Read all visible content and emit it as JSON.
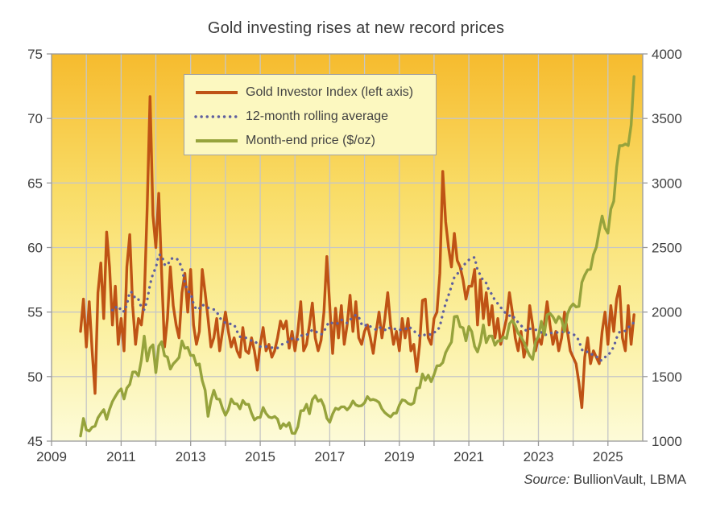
{
  "title": "Gold investing rises at new record prices",
  "source": {
    "prefix": "Source:",
    "text": "BullionVault, LBMA"
  },
  "legend": [
    {
      "label": "Gold Investor Index (left axis)",
      "style": "solid",
      "color": "#bf5315"
    },
    {
      "label": "12-month rolling average",
      "style": "dotted",
      "color": "#5f5f9e"
    },
    {
      "label": "Month-end price ($/oz)",
      "style": "solid",
      "color": "#96a33c"
    }
  ],
  "colors": {
    "line_red": "#bf5315",
    "line_dotted": "#5f5f9e",
    "line_green": "#96a33c",
    "gridline": "#c6c6c6",
    "axis": "#9a9a9a",
    "text": "#3f3f3f",
    "plot_gradient_top": "#f6bb2e",
    "plot_gradient_mid1": "#f9dc66",
    "plot_gradient_mid2": "#fbf0a0",
    "plot_gradient_bottom": "#fdfbd8",
    "legend_bg": "#fcf8c0",
    "legend_border": "#a2a2a2"
  },
  "chart_data": {
    "type": "line",
    "title": "Gold investing rises at new record prices",
    "xlabel": "",
    "ylabel_left": "",
    "ylabel_right": "",
    "grid": true,
    "legend_position": "upper-left-inside",
    "x_axis": {
      "range": [
        2009,
        2026
      ],
      "tick_labels": [
        2009,
        2011,
        2013,
        2015,
        2017,
        2019,
        2021,
        2023,
        2025
      ],
      "gridline_years_start": 2010,
      "gridline_years_end": 2025
    },
    "left_axis": {
      "range": [
        45,
        75
      ],
      "ticks": [
        45,
        50,
        55,
        60,
        65,
        70,
        75
      ]
    },
    "right_axis": {
      "range": [
        1000,
        4000
      ],
      "ticks": [
        1000,
        1500,
        2000,
        2500,
        3000,
        3500,
        4000
      ]
    },
    "x_start": {
      "year": 2009,
      "month": 10,
      "label": "2009-10",
      "frequency": "monthly",
      "last": "2025-09"
    },
    "series": [
      {
        "name": "Gold Investor Index (left axis)",
        "axis": "left",
        "style": "solid",
        "color": "#bf5315",
        "values": [
          53.5,
          56.0,
          52.3,
          55.8,
          52.0,
          48.7,
          56.5,
          58.8,
          54.5,
          61.2,
          58.5,
          54.0,
          57.0,
          52.5,
          54.5,
          52.0,
          58.5,
          61.0,
          55.5,
          52.5,
          54.5,
          54.0,
          56.0,
          63.0,
          71.7,
          62.5,
          60.0,
          64.2,
          58.0,
          52.3,
          54.5,
          58.5,
          55.5,
          54.0,
          53.0,
          56.5,
          58.0,
          55.0,
          58.3,
          54.0,
          52.5,
          53.5,
          58.3,
          56.5,
          54.5,
          52.3,
          53.0,
          54.5,
          52.0,
          53.5,
          55.0,
          53.5,
          52.3,
          53.0,
          52.0,
          51.5,
          53.8,
          52.0,
          51.8,
          53.0,
          52.0,
          50.5,
          52.5,
          53.8,
          52.0,
          52.5,
          51.5,
          52.0,
          53.0,
          54.3,
          53.7,
          54.3,
          52.2,
          53.5,
          52.0,
          53.5,
          55.8,
          52.0,
          52.5,
          54.0,
          55.7,
          53.0,
          52.0,
          52.8,
          55.0,
          59.3,
          55.5,
          51.8,
          55.3,
          53.0,
          55.5,
          52.5,
          54.0,
          56.3,
          53.5,
          55.8,
          53.0,
          52.5,
          53.5,
          54.0,
          53.0,
          51.8,
          53.5,
          55.0,
          53.0,
          54.5,
          56.5,
          54.0,
          52.5,
          53.5,
          52.0,
          54.5,
          53.0,
          54.5,
          52.0,
          52.5,
          50.4,
          52.5,
          55.9,
          56.0,
          53.0,
          52.5,
          54.5,
          55.0,
          58.0,
          65.9,
          62.0,
          60.0,
          58.5,
          61.1,
          59.0,
          58.5,
          57.5,
          56.0,
          57.0,
          57.0,
          58.3,
          54.0,
          57.5,
          54.5,
          56.5,
          54.0,
          55.5,
          53.0,
          54.5,
          52.5,
          53.5,
          54.5,
          56.5,
          55.0,
          53.0,
          52.0,
          53.5,
          51.5,
          52.5,
          55.5,
          54.0,
          52.0,
          53.0,
          52.5,
          54.0,
          55.8,
          54.0,
          52.5,
          53.5,
          52.0,
          53.0,
          55.0,
          53.5,
          52.0,
          51.5,
          51.0,
          49.5,
          47.6,
          51.5,
          53.0,
          51.0,
          52.0,
          51.5,
          51.0,
          53.5,
          55.0,
          52.5,
          55.5,
          53.5,
          56.0,
          57.0,
          53.0,
          52.0,
          55.5,
          52.5,
          54.8
        ]
      },
      {
        "name": "12-month rolling average",
        "axis": "left",
        "style": "dotted",
        "color": "#5f5f9e",
        "derived": "trailing-12-month-mean-of-series-0"
      },
      {
        "name": "Month-end price ($/oz)",
        "axis": "right",
        "style": "solid",
        "color": "#96a33c",
        "values": [
          1040,
          1175,
          1088,
          1078,
          1108,
          1116,
          1180,
          1215,
          1244,
          1169,
          1246,
          1307,
          1346,
          1383,
          1405,
          1327,
          1411,
          1439,
          1535,
          1536,
          1505,
          1628,
          1813,
          1620,
          1722,
          1746,
          1531,
          1737,
          1770,
          1662,
          1651,
          1558,
          1598,
          1622,
          1648,
          1776,
          1719,
          1726,
          1664,
          1664,
          1588,
          1598,
          1469,
          1394,
          1192,
          1314,
          1394,
          1327,
          1324,
          1253,
          1201,
          1244,
          1326,
          1291,
          1288,
          1250,
          1315,
          1285,
          1285,
          1216,
          1164,
          1182,
          1184,
          1260,
          1214,
          1187,
          1180,
          1191,
          1171,
          1098,
          1135,
          1114,
          1142,
          1061,
          1060,
          1111,
          1235,
          1237,
          1285,
          1212,
          1322,
          1351,
          1309,
          1322,
          1272,
          1178,
          1146,
          1210,
          1255,
          1245,
          1266,
          1266,
          1242,
          1267,
          1311,
          1280,
          1271,
          1275,
          1297,
          1345,
          1318,
          1323,
          1315,
          1300,
          1250,
          1221,
          1202,
          1187,
          1215,
          1217,
          1279,
          1320,
          1313,
          1292,
          1283,
          1296,
          1409,
          1414,
          1520,
          1472,
          1511,
          1460,
          1515,
          1584,
          1585,
          1608,
          1686,
          1729,
          1768,
          1964,
          1968,
          1886,
          1878,
          1777,
          1888,
          1848,
          1734,
          1691,
          1768,
          1900,
          1763,
          1814,
          1814,
          1743,
          1777,
          1775,
          1806,
          1795,
          1909,
          1937,
          1897,
          1837,
          1807,
          1766,
          1711,
          1661,
          1633,
          1769,
          1812,
          1928,
          1826,
          1979,
          1990,
          1963,
          1919,
          1965,
          1940,
          1849,
          1984,
          2036,
          2063,
          2040,
          2044,
          2230,
          2286,
          2327,
          2331,
          2446,
          2503,
          2630,
          2744,
          2651,
          2611,
          2798,
          2858,
          3124,
          3289,
          3289,
          3303,
          3290,
          3448,
          3825
        ]
      }
    ]
  }
}
